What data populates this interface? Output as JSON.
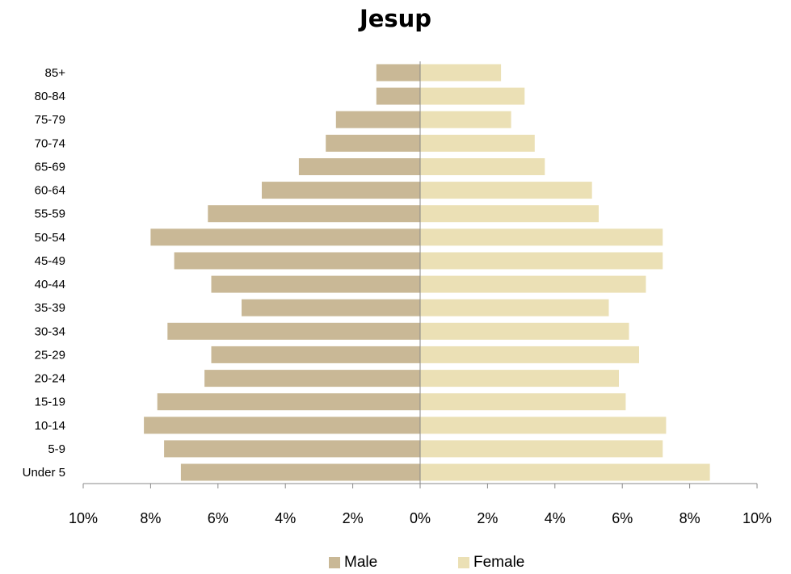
{
  "chart_data": {
    "type": "bar",
    "orientation": "horizontal",
    "title": "Jesup",
    "categories": [
      "85+",
      "80-84",
      "75-79",
      "70-74",
      "65-69",
      "60-64",
      "55-59",
      "50-54",
      "45-49",
      "40-44",
      "35-39",
      "30-34",
      "25-29",
      "20-24",
      "15-19",
      "10-14",
      "5-9",
      "Under 5"
    ],
    "series": [
      {
        "name": "Male",
        "color": "#c9b896",
        "values": [
          1.3,
          1.3,
          2.5,
          2.8,
          3.6,
          4.7,
          6.3,
          8.0,
          7.3,
          6.2,
          5.3,
          7.5,
          6.2,
          6.4,
          7.8,
          8.2,
          7.6,
          7.1
        ]
      },
      {
        "name": "Female",
        "color": "#ebe0b5",
        "values": [
          2.4,
          3.1,
          2.7,
          3.4,
          3.7,
          5.1,
          5.3,
          7.2,
          7.2,
          6.7,
          5.6,
          6.2,
          6.5,
          5.9,
          6.1,
          7.3,
          7.2,
          8.6
        ]
      }
    ],
    "xlim": [
      -10,
      10
    ],
    "xticks": [
      -10,
      -8,
      -6,
      -4,
      -2,
      0,
      2,
      4,
      6,
      8,
      10
    ],
    "xtick_labels": [
      "10%",
      "8%",
      "6%",
      "4%",
      "2%",
      "0%",
      "2%",
      "4%",
      "6%",
      "8%",
      "10%"
    ],
    "grid": false,
    "legend_position": "bottom"
  }
}
